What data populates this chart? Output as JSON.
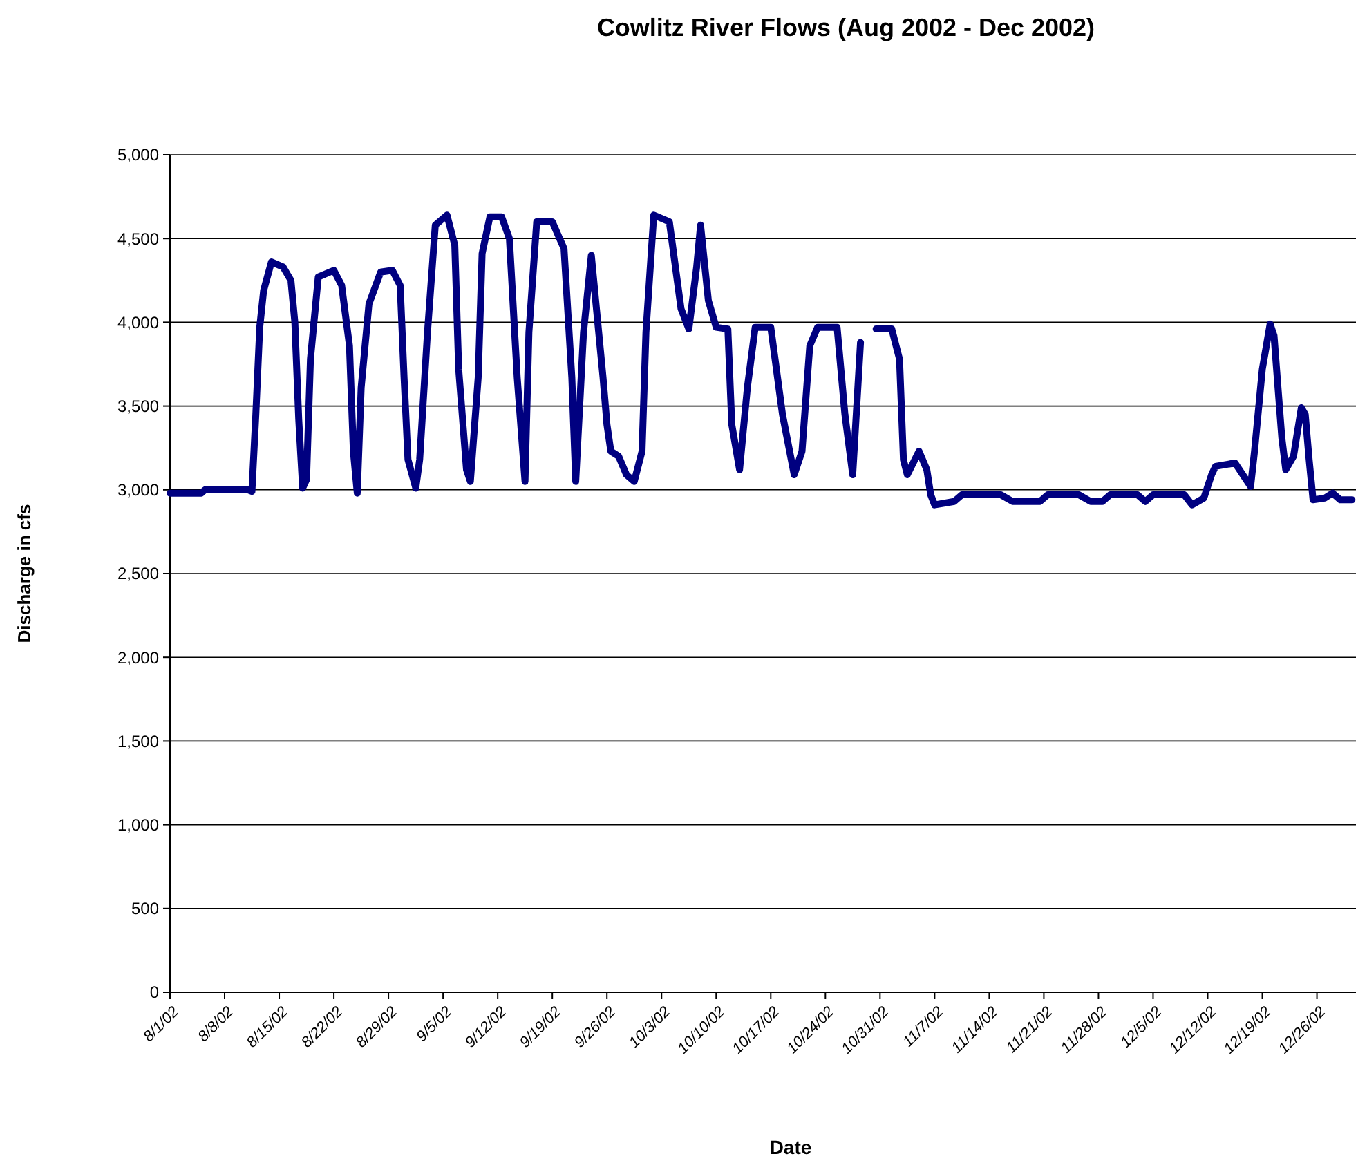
{
  "chart_data": {
    "type": "line",
    "title": "Cowlitz River Flows (Aug 2002 - Dec 2002)",
    "xlabel": "Date",
    "ylabel": "Discharge in cfs",
    "x": [
      "2002-08-01",
      "2002-08-05",
      "2002-08-05T12:00",
      "2002-08-11",
      "2002-08-11T12:00",
      "2002-08-12",
      "2002-08-12T12:00",
      "2002-08-13",
      "2002-08-14",
      "2002-08-15T12:00",
      "2002-08-16T12:00",
      "2002-08-17",
      "2002-08-17T12:00",
      "2002-08-18",
      "2002-08-18T12:00",
      "2002-08-19",
      "2002-08-20",
      "2002-08-22",
      "2002-08-23",
      "2002-08-24",
      "2002-08-24T12:00",
      "2002-08-25",
      "2002-08-25T12:00",
      "2002-08-26T12:00",
      "2002-08-28",
      "2002-08-29T12:00",
      "2002-08-30T12:00",
      "2002-08-31",
      "2002-08-31T12:00",
      "2002-09-01T12:00",
      "2002-09-02",
      "2002-09-03",
      "2002-09-04",
      "2002-09-05T12:00",
      "2002-09-06T12:00",
      "2002-09-07",
      "2002-09-08",
      "2002-09-08T12:00",
      "2002-09-09T12:00",
      "2002-09-10",
      "2002-09-11",
      "2002-09-12T12:00",
      "2002-09-13T12:00",
      "2002-09-14T12:00",
      "2002-09-15T12:00",
      "2002-09-16",
      "2002-09-17",
      "2002-09-19",
      "2002-09-20T12:00",
      "2002-09-21T12:00",
      "2002-09-22",
      "2002-09-23",
      "2002-09-24",
      "2002-09-25T12:00",
      "2002-09-26",
      "2002-09-26T12:00",
      "2002-09-27T12:00",
      "2002-09-28T12:00",
      "2002-09-29T12:00",
      "2002-09-30T12:00",
      "2002-10-01",
      "2002-10-02",
      "2002-10-04",
      "2002-10-05T12:00",
      "2002-10-06T12:00",
      "2002-10-07T12:00",
      "2002-10-08",
      "2002-10-09",
      "2002-10-10",
      "2002-10-11T12:00",
      "2002-10-12",
      "2002-10-13",
      "2002-10-14",
      "2002-10-15",
      "2002-10-17",
      "2002-10-18T12:00",
      "2002-10-20",
      "2002-10-21",
      "2002-10-22",
      "2002-10-23",
      "2002-10-25T12:00",
      "2002-10-26T12:00",
      "2002-10-27T12:00",
      "2002-10-28T12:00",
      "2002-10-29T12:00",
      "2002-10-30T12:00",
      "2002-11-01T12:00",
      "2002-11-02T12:00",
      "2002-11-03",
      "2002-11-03T12:00",
      "2002-11-05",
      "2002-11-06",
      "2002-11-06T12:00",
      "2002-11-07",
      "2002-11-09T12:00",
      "2002-11-10T12:00",
      "2002-11-15T12:00",
      "2002-11-17",
      "2002-11-20T12:00",
      "2002-11-21T12:00",
      "2002-11-25T12:00",
      "2002-11-27",
      "2002-11-28T12:00",
      "2002-11-29T12:00",
      "2002-12-03",
      "2002-12-04",
      "2002-12-05",
      "2002-12-09",
      "2002-12-10",
      "2002-12-11T12:00",
      "2002-12-12T12:00",
      "2002-12-13",
      "2002-12-15T12:00",
      "2002-12-16T12:00",
      "2002-12-17T12:00",
      "2002-12-18",
      "2002-12-19",
      "2002-12-20",
      "2002-12-20T12:00",
      "2002-12-21T12:00",
      "2002-12-22",
      "2002-12-23",
      "2002-12-24",
      "2002-12-24T12:00",
      "2002-12-25",
      "2002-12-25T12:00",
      "2002-12-27",
      "2002-12-28",
      "2002-12-29",
      "2002-12-30T12:00"
    ],
    "series": [
      {
        "color": "#000080",
        "values": [
          2980,
          2980,
          3000,
          3000,
          2990,
          3450,
          3970,
          4190,
          4360,
          4330,
          4250,
          4000,
          3420,
          3010,
          3060,
          3780,
          4270,
          4310,
          4220,
          3860,
          3230,
          2980,
          3610,
          4110,
          4300,
          4310,
          4220,
          3670,
          3180,
          3010,
          3180,
          3940,
          4580,
          4640,
          4460,
          3720,
          3120,
          3050,
          3670,
          4410,
          4630,
          4630,
          4500,
          3670,
          3050,
          3940,
          4600,
          4600,
          4440,
          3670,
          3050,
          3940,
          4400,
          3670,
          3390,
          3230,
          3200,
          3090,
          3050,
          3230,
          3940,
          4640,
          4600,
          4080,
          3960,
          4330,
          4580,
          4130,
          3970,
          3960,
          3390,
          3120,
          3610,
          3970,
          3970,
          3450,
          3090,
          3230,
          3860,
          3970,
          3970,
          3450,
          3090,
          3880,
          null,
          3960,
          3960,
          3780,
          3180,
          3090,
          3230,
          3120,
          2970,
          2910,
          2930,
          2970,
          2970,
          2930,
          2930,
          2970,
          2970,
          2930,
          2930,
          2970,
          2970,
          2930,
          2970,
          2970,
          2910,
          2950,
          3090,
          3140,
          3160,
          3090,
          3020,
          3230,
          3720,
          3990,
          3920,
          3310,
          3120,
          3200,
          3490,
          3450,
          3180,
          2940,
          2950,
          2980,
          2940,
          2940
        ]
      }
    ],
    "xlim": [
      "2002-08-01",
      "2002-12-31"
    ],
    "xticks": [
      {
        "value": "2002-08-01",
        "label": "8/1/02"
      },
      {
        "value": "2002-08-08",
        "label": "8/8/02"
      },
      {
        "value": "2002-08-15",
        "label": "8/15/02"
      },
      {
        "value": "2002-08-22",
        "label": "8/22/02"
      },
      {
        "value": "2002-08-29",
        "label": "8/29/02"
      },
      {
        "value": "2002-09-05",
        "label": "9/5/02"
      },
      {
        "value": "2002-09-12",
        "label": "9/12/02"
      },
      {
        "value": "2002-09-19",
        "label": "9/19/02"
      },
      {
        "value": "2002-09-26",
        "label": "9/26/02"
      },
      {
        "value": "2002-10-03",
        "label": "10/3/02"
      },
      {
        "value": "2002-10-10",
        "label": "10/10/02"
      },
      {
        "value": "2002-10-17",
        "label": "10/17/02"
      },
      {
        "value": "2002-10-24",
        "label": "10/24/02"
      },
      {
        "value": "2002-10-31",
        "label": "10/31/02"
      },
      {
        "value": "2002-11-07",
        "label": "11/7/02"
      },
      {
        "value": "2002-11-14",
        "label": "11/14/02"
      },
      {
        "value": "2002-11-21",
        "label": "11/21/02"
      },
      {
        "value": "2002-11-28",
        "label": "11/28/02"
      },
      {
        "value": "2002-12-05",
        "label": "12/5/02"
      },
      {
        "value": "2002-12-12",
        "label": "12/12/02"
      },
      {
        "value": "2002-12-19",
        "label": "12/19/02"
      },
      {
        "value": "2002-12-26",
        "label": "12/26/02"
      }
    ],
    "ylim": [
      0,
      5000
    ],
    "yticks": [
      0,
      500,
      {
        "value": 1000,
        "label": "1,000"
      },
      {
        "value": 1500,
        "label": "1,500"
      },
      {
        "value": 2000,
        "label": "2,000"
      },
      {
        "value": 2500,
        "label": "2,500"
      },
      {
        "value": 3000,
        "label": "3,000"
      },
      {
        "value": 3500,
        "label": "3,500"
      },
      {
        "value": 4000,
        "label": "4,000"
      },
      {
        "value": 4500,
        "label": "4,500"
      },
      {
        "value": 5000,
        "label": "5,000"
      }
    ],
    "grid": "y",
    "marker": "none",
    "line_style": "solid"
  }
}
